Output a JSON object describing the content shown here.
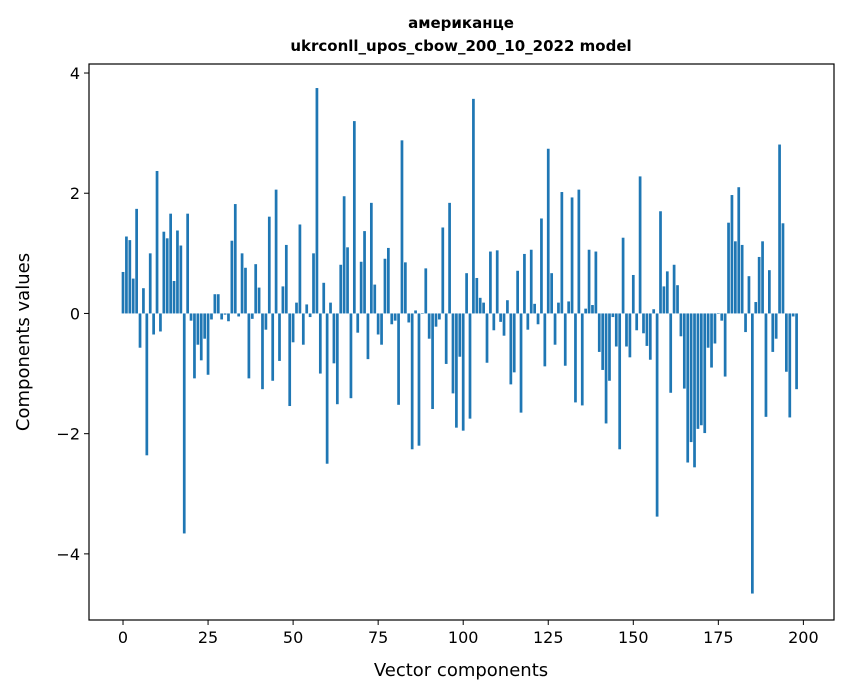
{
  "chart_data": {
    "type": "bar",
    "title_line1": "американце",
    "title_line2": "ukrconll_upos_cbow_200_10_2022 model",
    "xlabel": "Vector components",
    "ylabel": "Components values",
    "xlim": [
      -10,
      209
    ],
    "ylim": [
      -5.1,
      4.15
    ],
    "xticks": [
      0,
      25,
      50,
      75,
      100,
      125,
      150,
      175,
      200
    ],
    "xtick_labels": [
      "0",
      "25",
      "50",
      "75",
      "100",
      "125",
      "150",
      "175",
      "200"
    ],
    "yticks": [
      4,
      2,
      0,
      -2,
      -4
    ],
    "ytick_labels": [
      "4",
      "2",
      "0",
      "−2",
      "−4"
    ],
    "bar_color": "#1f77b4",
    "grid": false,
    "values": [
      0.69,
      1.28,
      1.22,
      0.58,
      1.74,
      -0.57,
      0.42,
      -2.36,
      1.0,
      -0.35,
      2.37,
      -0.3,
      1.36,
      1.25,
      1.66,
      0.54,
      1.38,
      1.13,
      -3.66,
      1.66,
      -0.12,
      -1.08,
      -0.52,
      -0.78,
      -0.42,
      -1.02,
      -0.1,
      0.32,
      0.32,
      -0.1,
      -0.02,
      -0.13,
      1.21,
      1.82,
      -0.05,
      1.0,
      0.76,
      -1.08,
      -0.09,
      0.82,
      0.43,
      -1.26,
      -0.27,
      1.61,
      -1.12,
      2.06,
      -0.79,
      0.45,
      1.14,
      -1.54,
      -0.48,
      0.18,
      1.48,
      -0.52,
      0.15,
      -0.06,
      1.0,
      3.75,
      -1.0,
      0.51,
      -2.5,
      0.18,
      -0.83,
      -1.51,
      0.81,
      1.95,
      1.1,
      -1.41,
      3.2,
      -0.32,
      0.86,
      1.37,
      -0.76,
      1.84,
      0.48,
      -0.35,
      -0.52,
      0.91,
      1.09,
      -0.18,
      -0.12,
      -1.52,
      2.88,
      0.85,
      -0.15,
      -2.26,
      0.05,
      -2.2,
      0.0,
      0.75,
      -0.42,
      -1.59,
      -0.22,
      -0.1,
      1.43,
      -0.84,
      1.84,
      -1.33,
      -1.9,
      -0.72,
      -1.95,
      0.67,
      -1.75,
      3.57,
      0.59,
      0.26,
      0.18,
      -0.82,
      1.03,
      -0.28,
      1.05,
      -0.14,
      -0.37,
      0.22,
      -1.18,
      -0.98,
      0.71,
      -1.65,
      0.99,
      -0.27,
      1.06,
      0.16,
      -0.18,
      1.58,
      -0.88,
      2.74,
      0.67,
      -0.52,
      0.18,
      2.02,
      -0.87,
      0.2,
      1.93,
      -1.48,
      2.06,
      -1.53,
      0.08,
      1.06,
      0.14,
      1.03,
      -0.64,
      -0.94,
      -1.83,
      -1.12,
      -0.06,
      -0.55,
      -2.26,
      1.26,
      -0.55,
      -0.73,
      0.64,
      -0.28,
      2.28,
      -0.33,
      -0.54,
      -0.77,
      0.07,
      -3.38,
      1.7,
      0.45,
      0.7,
      -1.32,
      0.81,
      0.47,
      -0.38,
      -1.25,
      -2.48,
      -2.14,
      -2.56,
      -1.92,
      -1.86,
      -1.99,
      -0.57,
      -0.9,
      -0.5,
      0.0,
      -0.12,
      -1.05,
      1.51,
      1.97,
      1.2,
      2.1,
      1.14,
      -0.31,
      0.62,
      -4.66,
      0.19,
      0.94,
      1.2,
      -1.72,
      0.72,
      -0.64,
      -0.42,
      2.81,
      1.5,
      -0.97,
      -1.73,
      -0.05,
      -1.26
    ]
  }
}
